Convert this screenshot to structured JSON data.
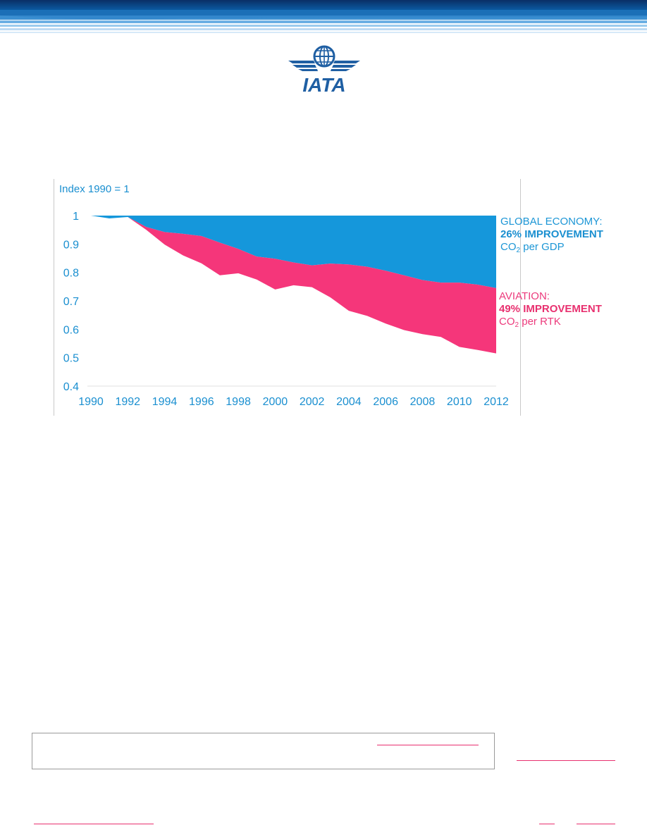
{
  "chart_data": {
    "type": "area",
    "ylabel": "Index 1990 = 1",
    "ylim": [
      0.4,
      1.0
    ],
    "xlim": [
      1990,
      2012
    ],
    "y_ticks": [
      "1",
      "0.9",
      "0.8",
      "0.7",
      "0.6",
      "0.5",
      "0.4"
    ],
    "y_tick_values": [
      1.0,
      0.9,
      0.8,
      0.7,
      0.6,
      0.5,
      0.4
    ],
    "x_ticks": [
      "1990",
      "1992",
      "1994",
      "1996",
      "1998",
      "2000",
      "2002",
      "2004",
      "2006",
      "2008",
      "2010",
      "2012"
    ],
    "x_tick_values": [
      1990,
      1992,
      1994,
      1996,
      1998,
      2000,
      2002,
      2004,
      2006,
      2008,
      2010,
      2012
    ],
    "grid": false,
    "x": [
      1990,
      1991,
      1992,
      1993,
      1994,
      1995,
      1996,
      1997,
      1998,
      1999,
      2000,
      2001,
      2002,
      2003,
      2004,
      2005,
      2006,
      2007,
      2008,
      2009,
      2010,
      2011,
      2012
    ],
    "series": [
      {
        "values": [
          1.0,
          0.99,
          0.995,
          0.96,
          0.942,
          0.936,
          0.928,
          0.905,
          0.883,
          0.856,
          0.848,
          0.835,
          0.825,
          0.831,
          0.828,
          0.82,
          0.806,
          0.79,
          0.773,
          0.764,
          0.764,
          0.757,
          0.745
        ],
        "color": "#1597db"
      },
      {
        "values": [
          1.0,
          0.99,
          0.995,
          0.95,
          0.898,
          0.86,
          0.832,
          0.79,
          0.797,
          0.775,
          0.74,
          0.755,
          0.748,
          0.712,
          0.665,
          0.647,
          0.62,
          0.597,
          0.583,
          0.573,
          0.538,
          0.527,
          0.515
        ],
        "color": "#f5367a"
      }
    ]
  },
  "annotations": {
    "global": {
      "line1": "GLOBAL ECONOMY:",
      "line2": "26% IMPROVEMENT",
      "line3_a": "CO",
      "line3_sub": "2",
      "line3_b": " per GDP"
    },
    "aviation": {
      "line1": "AVIATION:",
      "line2": "49% IMPROVEMENT",
      "line3_a": "CO",
      "line3_sub": "2",
      "line3_b": " per RTK"
    }
  },
  "logo": {
    "wordmark": "IATA",
    "icon": "globe-wings-icon"
  },
  "colors": {
    "banner_dark": "#003f7d",
    "axis_text": "#1a8fd0",
    "link_pink": "#e8306f"
  }
}
